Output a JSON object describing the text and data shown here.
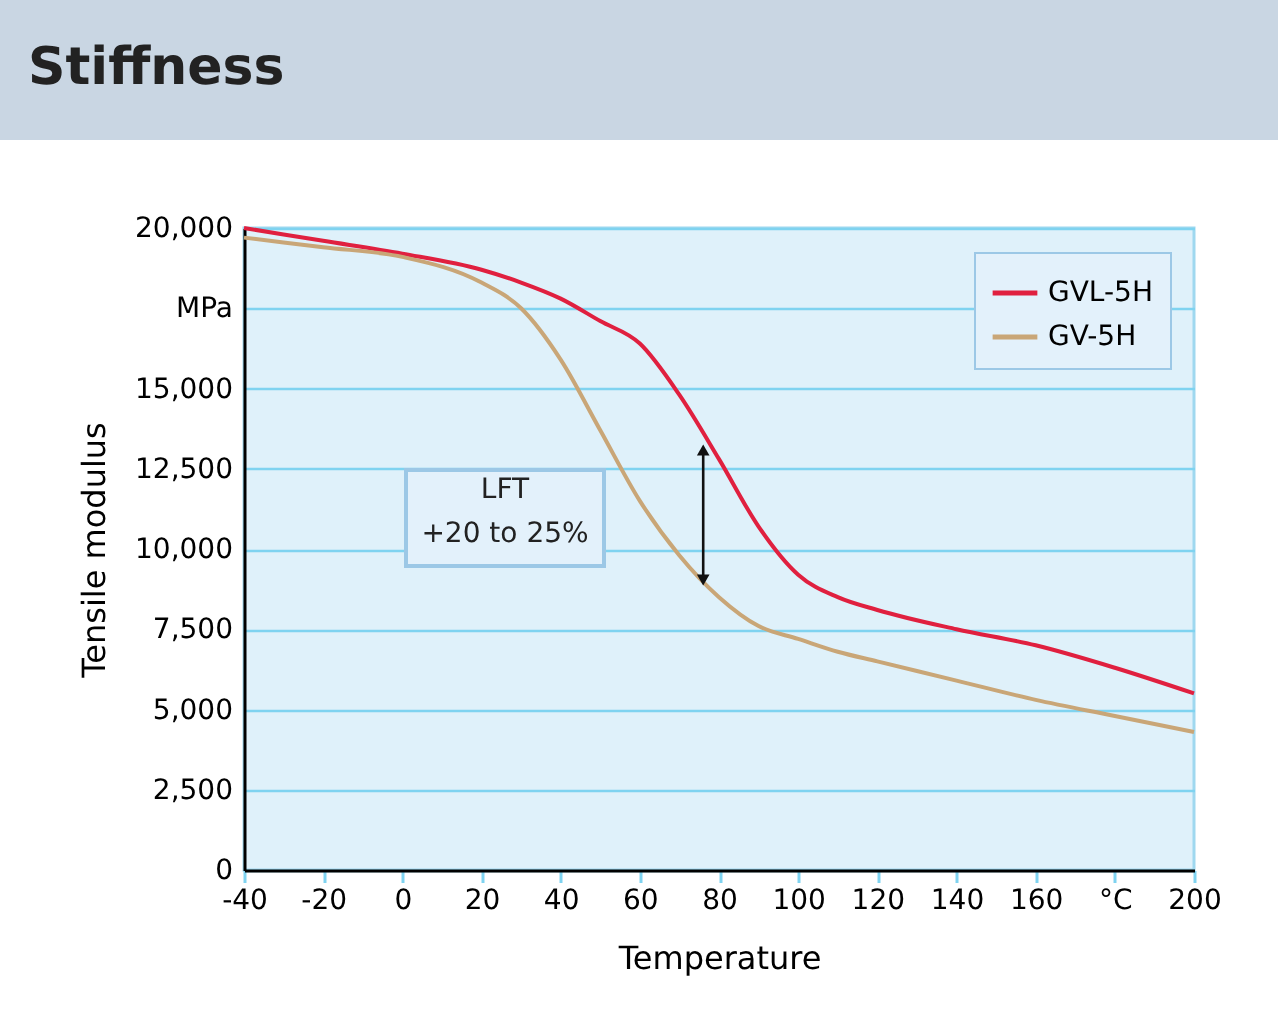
{
  "chart_data": {
    "type": "line",
    "title": "Stiffness",
    "xlabel": "Temperature",
    "ylabel": "Tensile modulus",
    "x": [
      -40,
      -20,
      0,
      20,
      30,
      40,
      50,
      60,
      70,
      80,
      90,
      100,
      110,
      120,
      140,
      160,
      180,
      200
    ],
    "series": [
      {
        "name": "GVL-5H",
        "color": "#e0203f",
        "values": [
          20000,
          19600,
          19200,
          18700,
          18300,
          17800,
          17100,
          16400,
          14800,
          12800,
          10700,
          9200,
          8500,
          8100,
          7500,
          7000,
          6300,
          5500
        ]
      },
      {
        "name": "GV-5H",
        "color": "#c9a677",
        "values": [
          19700,
          19400,
          19100,
          18300,
          17500,
          15900,
          13700,
          11500,
          9800,
          8500,
          7600,
          7200,
          6800,
          6500,
          5900,
          5300,
          4800,
          4300
        ]
      }
    ],
    "xlim": [
      -40,
      200
    ],
    "xticks": [
      -40,
      -20,
      0,
      20,
      40,
      60,
      80,
      100,
      120,
      140,
      160,
      {
        "value": 180,
        "label": "°C"
      },
      200
    ],
    "ylim": [
      0,
      20000
    ],
    "yticks": [
      0,
      {
        "value": 2500,
        "label": "2,500"
      },
      {
        "value": 5000,
        "label": "5,000"
      },
      {
        "value": 7500,
        "label": "7,500"
      },
      {
        "value": 10000,
        "label": "10,000"
      },
      {
        "value": 12500,
        "label": "12,500"
      },
      {
        "value": 15000,
        "label": "15,000"
      },
      {
        "value": 17500,
        "label": "MPa"
      },
      {
        "value": 20000,
        "label": "20,000"
      }
    ],
    "grid": "y",
    "legend": "top right",
    "annotations": [
      "LFT\n+20 to 25%"
    ]
  }
}
